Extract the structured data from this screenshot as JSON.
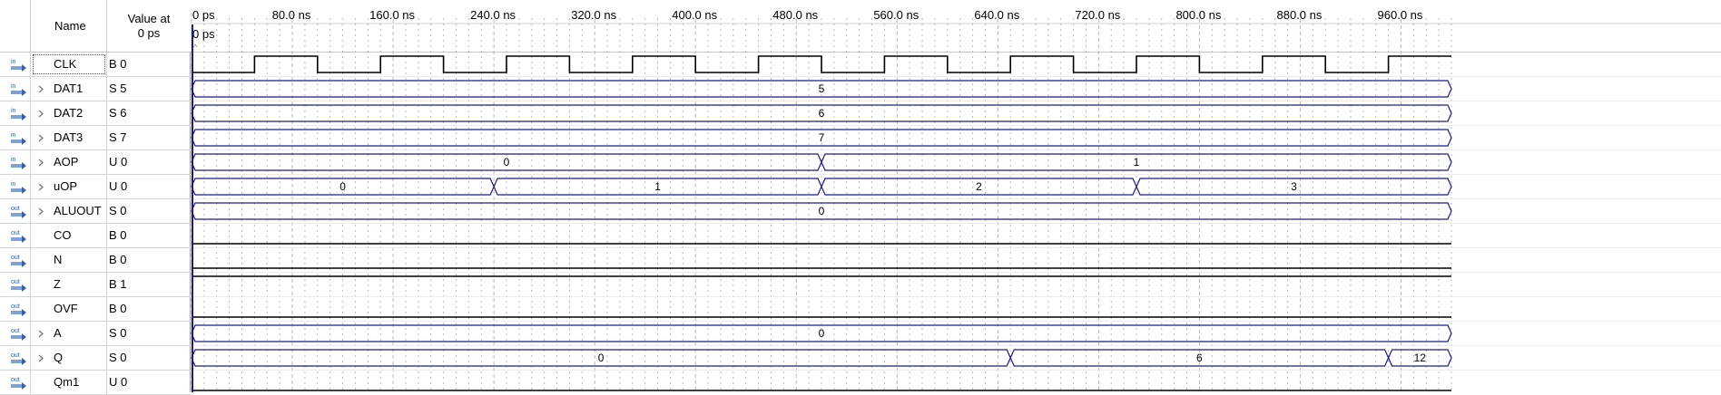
{
  "header": {
    "name_label": "Name",
    "value_label": "Value at\n0 ps"
  },
  "cursor": {
    "label": "0 ps",
    "time_ns": 0
  },
  "time_axis": {
    "ticks": [
      "0 ps",
      "80.0 ns",
      "160.0 ns",
      "240.0 ns",
      "320.0 ns",
      "400.0 ns",
      "480.0 ns",
      "560.0 ns",
      "640.0 ns",
      "720.0 ns",
      "800.0 ns",
      "880.0 ns",
      "960.0 ns"
    ],
    "start_ns": 0,
    "major_step_ns": 80,
    "visible_end_ns": 1000
  },
  "colors": {
    "wave": "#000000",
    "bus": "#1a1a8c",
    "cursor": "#1a1a8c",
    "grid": "#b8b8b8"
  },
  "signals": [
    {
      "name": "CLK",
      "value": "B 0",
      "dir": "in",
      "icon": "input-pin-icon",
      "expandable": false,
      "type": "clock",
      "period_ns": 100,
      "high_first": false
    },
    {
      "name": "DAT1",
      "value": "S 5",
      "dir": "in",
      "icon": "input-pin-icon",
      "expandable": true,
      "type": "bus",
      "segments": [
        {
          "start_ns": 0,
          "end_ns": 1000,
          "label": "5"
        }
      ]
    },
    {
      "name": "DAT2",
      "value": "S 6",
      "dir": "in",
      "icon": "input-pin-icon",
      "expandable": true,
      "type": "bus",
      "segments": [
        {
          "start_ns": 0,
          "end_ns": 1000,
          "label": "6"
        }
      ]
    },
    {
      "name": "DAT3",
      "value": "S 7",
      "dir": "in",
      "icon": "input-pin-icon",
      "expandable": true,
      "type": "bus",
      "segments": [
        {
          "start_ns": 0,
          "end_ns": 1000,
          "label": "7"
        }
      ]
    },
    {
      "name": "AOP",
      "value": "U 0",
      "dir": "in",
      "icon": "input-pin-icon",
      "expandable": true,
      "type": "bus",
      "segments": [
        {
          "start_ns": 0,
          "end_ns": 500,
          "label": "0"
        },
        {
          "start_ns": 500,
          "end_ns": 1000,
          "label": "1"
        }
      ]
    },
    {
      "name": "uOP",
      "value": "U 0",
      "dir": "in",
      "icon": "input-pin-icon",
      "expandable": true,
      "type": "bus",
      "segments": [
        {
          "start_ns": 0,
          "end_ns": 240,
          "label": "0"
        },
        {
          "start_ns": 240,
          "end_ns": 500,
          "label": "1"
        },
        {
          "start_ns": 500,
          "end_ns": 750,
          "label": "2"
        },
        {
          "start_ns": 750,
          "end_ns": 1000,
          "label": "3"
        }
      ]
    },
    {
      "name": "ALUOUT",
      "value": "S 0",
      "dir": "out",
      "icon": "output-pin-icon",
      "expandable": true,
      "type": "bus",
      "segments": [
        {
          "start_ns": 0,
          "end_ns": 1000,
          "label": "0"
        }
      ]
    },
    {
      "name": "CO",
      "value": "B 0",
      "dir": "out",
      "icon": "output-pin-icon",
      "expandable": false,
      "type": "bit",
      "level": 0
    },
    {
      "name": "N",
      "value": "B 0",
      "dir": "out",
      "icon": "output-pin-icon",
      "expandable": false,
      "type": "bit",
      "level": 0
    },
    {
      "name": "Z",
      "value": "B 1",
      "dir": "out",
      "icon": "output-pin-icon",
      "expandable": false,
      "type": "bit",
      "level": 1
    },
    {
      "name": "OVF",
      "value": "B 0",
      "dir": "out",
      "icon": "output-pin-icon",
      "expandable": false,
      "type": "bit",
      "level": 0
    },
    {
      "name": "A",
      "value": "S 0",
      "dir": "out",
      "icon": "output-pin-icon",
      "expandable": true,
      "type": "bus",
      "segments": [
        {
          "start_ns": 0,
          "end_ns": 1000,
          "label": "0"
        }
      ]
    },
    {
      "name": "Q",
      "value": "S 0",
      "dir": "out",
      "icon": "output-pin-icon",
      "expandable": true,
      "type": "bus",
      "segments": [
        {
          "start_ns": 0,
          "end_ns": 650,
          "label": "0"
        },
        {
          "start_ns": 650,
          "end_ns": 950,
          "label": "6"
        },
        {
          "start_ns": 950,
          "end_ns": 1000,
          "label": "12"
        }
      ]
    },
    {
      "name": "Qm1",
      "value": "U 0",
      "dir": "out",
      "icon": "output-pin-icon",
      "expandable": false,
      "type": "bit",
      "level": 0
    }
  ]
}
